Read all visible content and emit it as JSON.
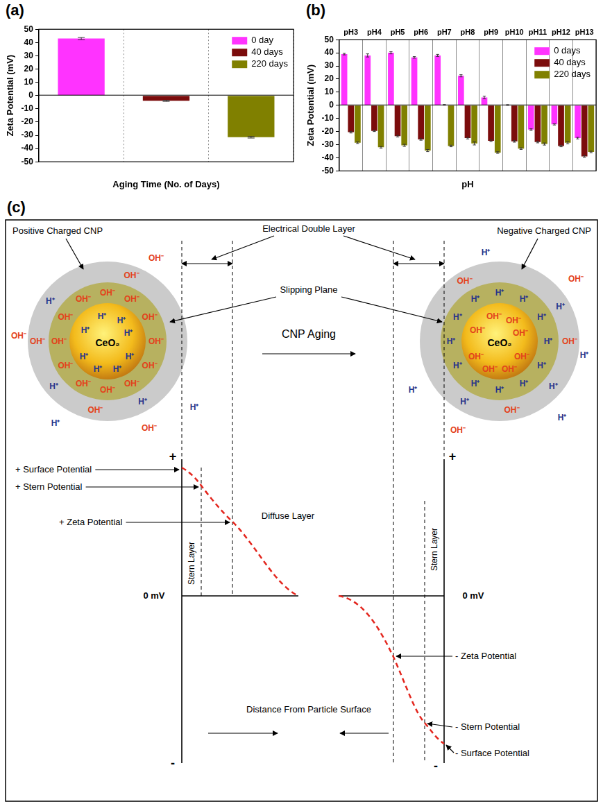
{
  "chart_data": [
    {
      "type": "bar",
      "panel": "(a)",
      "categories": [
        null,
        null,
        null
      ],
      "x_label": "Aging Time (No. of Days)",
      "y_label": "Zeta Potential (mV)",
      "series": [
        {
          "name": "0 day",
          "color": "#ff33ff",
          "values": [
            43,
            null,
            null
          ],
          "errors": [
            0.8,
            null,
            null
          ]
        },
        {
          "name": "40 days",
          "color": "#7b0c0c",
          "values": [
            null,
            -4,
            null
          ],
          "errors": [
            null,
            0.4,
            null
          ]
        },
        {
          "name": "220 days",
          "color": "#808000",
          "values": [
            null,
            null,
            -31.5
          ],
          "errors": [
            null,
            null,
            0.6
          ]
        }
      ],
      "ylim": [
        -50,
        50
      ],
      "yticks": [
        -50,
        -40,
        -30,
        -20,
        -10,
        0,
        10,
        20,
        30,
        40,
        50
      ],
      "grid": "x",
      "legend": "upper right"
    },
    {
      "type": "bar",
      "panel": "(b)",
      "categories": [
        "pH3",
        "pH4",
        "pH5",
        "pH6",
        "pH7",
        "pH8",
        "pH9",
        "pH10",
        "pH11",
        "pH12",
        "pH13"
      ],
      "x_label": "pH",
      "y_label": "Zeta Potential (mV)",
      "series": [
        {
          "name": "0 days",
          "color": "#ff33ff",
          "values": [
            39,
            38,
            40,
            36.5,
            38,
            22.5,
            6,
            0.2,
            -18.5,
            -14.5,
            -25
          ],
          "errors": [
            0.6,
            1.2,
            0.8,
            0.6,
            0.8,
            0.8,
            1.0,
            0.3,
            0.6,
            0.5,
            0.6
          ]
        },
        {
          "name": "40 days",
          "color": "#7b0c0c",
          "values": [
            -20.5,
            -19.5,
            -23.5,
            -26,
            0.3,
            -25,
            -27,
            -27.5,
            -28,
            -31,
            -39
          ],
          "errors": [
            0.6,
            0.5,
            0.6,
            0.6,
            0.3,
            0.6,
            0.6,
            0.6,
            0.6,
            0.6,
            0.6
          ]
        },
        {
          "name": "220 days",
          "color": "#808000",
          "values": [
            -28.5,
            -32,
            -30.5,
            -34.5,
            -31,
            -29,
            -36,
            -33,
            -29.5,
            -28.5,
            -35.5
          ],
          "errors": [
            0.6,
            0.6,
            0.8,
            0.8,
            0.6,
            1.2,
            0.6,
            0.6,
            0.8,
            0.8,
            0.6
          ]
        }
      ],
      "ylim": [
        -50,
        50
      ],
      "yticks": [
        -50,
        -40,
        -30,
        -20,
        -10,
        0,
        10,
        20,
        30,
        40,
        50
      ],
      "grid": "x",
      "legend": "upper right"
    }
  ],
  "diagram": {
    "panel": "(c)",
    "particles": [
      {
        "title": "Positive Charged CNP",
        "core": "CeO₂"
      },
      {
        "title": "Negative Charged CNP",
        "core": "CeO₂"
      }
    ],
    "double_layer": "Electrical Double Layer",
    "slipping_plane": "Slipping Plane",
    "transition": "CNP Aging",
    "ions": {
      "hydroxide": "OH⁻",
      "proton": "H⁺"
    },
    "profiles": [
      {
        "top": "+",
        "bottom": "-",
        "zero": "0 mV",
        "stern_layer": "Stern Layer",
        "surface": "+ Surface Potential",
        "stern": "+ Stern Potential",
        "zeta": "+ Zeta Potential"
      },
      {
        "top": "+",
        "bottom": "-",
        "zero": "0 mV",
        "stern_layer": "Stern Layer",
        "surface": "- Surface Potential",
        "stern": "- Stern Potential",
        "zeta": "- Zeta Potential"
      }
    ],
    "diffuse_layer": "Diffuse Layer",
    "distance_axis": "Distance From Particle Surface"
  }
}
